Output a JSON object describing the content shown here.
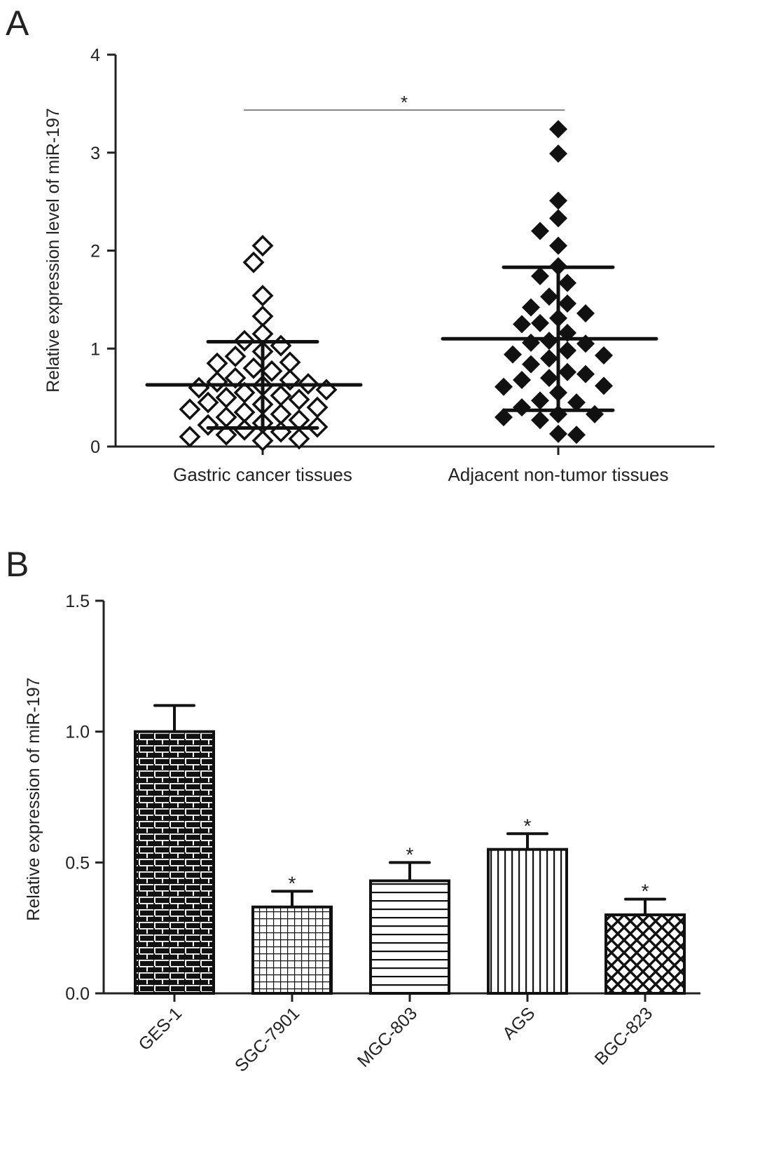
{
  "chart_data": [
    {
      "panel": "A",
      "type": "scatter",
      "ylabel": "Relative expression level of miR-197",
      "ylim": [
        0,
        4
      ],
      "yticks": [
        "0",
        "1",
        "2",
        "3",
        "4"
      ],
      "categories": [
        "Gastric cancer tissues",
        "Adjacent non-tumor tissues"
      ],
      "significance": "*",
      "series": [
        {
          "name": "Gastric cancer tissues",
          "marker": "open-diamond",
          "mean": 0.63,
          "sd_low": 0.19,
          "sd_high": 1.07,
          "values": [
            2.05,
            1.88,
            1.54,
            1.33,
            1.15,
            1.08,
            1.03,
            0.97,
            0.92,
            0.86,
            0.85,
            0.8,
            0.77,
            0.7,
            0.68,
            0.66,
            0.64,
            0.62,
            0.6,
            0.58,
            0.55,
            0.52,
            0.5,
            0.48,
            0.45,
            0.43,
            0.4,
            0.38,
            0.35,
            0.33,
            0.3,
            0.27,
            0.24,
            0.22,
            0.2,
            0.17,
            0.15,
            0.12,
            0.1,
            0.08,
            0.06
          ]
        },
        {
          "name": "Adjacent non-tumor tissues",
          "marker": "filled-diamond",
          "mean": 1.1,
          "sd_low": 0.37,
          "sd_high": 1.83,
          "values": [
            3.24,
            2.99,
            2.51,
            2.33,
            2.2,
            2.05,
            1.84,
            1.74,
            1.67,
            1.53,
            1.46,
            1.42,
            1.36,
            1.31,
            1.26,
            1.25,
            1.16,
            1.08,
            1.06,
            1.05,
            0.98,
            0.94,
            0.93,
            0.9,
            0.84,
            0.76,
            0.74,
            0.7,
            0.68,
            0.62,
            0.61,
            0.55,
            0.47,
            0.45,
            0.4,
            0.33,
            0.33,
            0.3,
            0.27,
            0.13,
            0.12
          ]
        }
      ]
    },
    {
      "panel": "B",
      "type": "bar",
      "ylabel": "Relative expression of miR-197",
      "ylim": [
        0,
        1.5
      ],
      "yticks": [
        "0.0",
        "0.5",
        "1.0",
        "1.5"
      ],
      "categories": [
        "GES-1",
        "SGC-7901",
        "MGC-803",
        "AGS",
        "BGC-823"
      ],
      "values": [
        1.0,
        0.33,
        0.43,
        0.55,
        0.3
      ],
      "error_upper": [
        1.1,
        0.39,
        0.5,
        0.61,
        0.36
      ],
      "annotations": [
        "",
        "*",
        "*",
        "*",
        "*"
      ]
    }
  ]
}
